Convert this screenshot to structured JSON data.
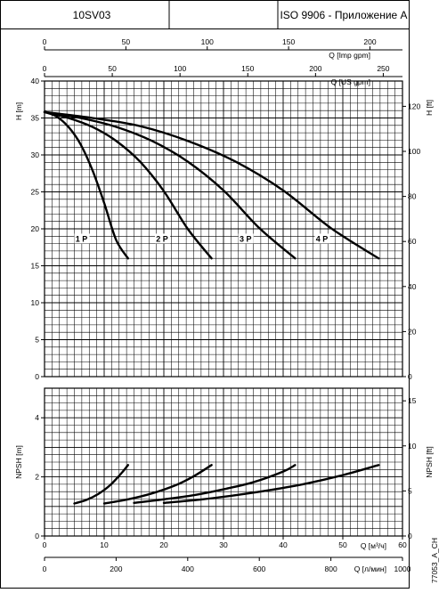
{
  "header": {
    "model": "10SV03",
    "middle": "",
    "standard": "ISO 9906 - Приложение A"
  },
  "side_code": "77053_A_CH",
  "chart_data": [
    {
      "type": "line",
      "name": "pump-head-curves",
      "xlabel": "Q [м³/ч]",
      "ylabel": "H [m]",
      "y2label": "H [ft]",
      "xlim": [
        0,
        60
      ],
      "ylim": [
        0,
        40
      ],
      "y2lim": [
        0,
        131.23
      ],
      "grid": true,
      "top_axes": [
        {
          "label": "Q [Imp gpm]",
          "lim": [
            0,
            220
          ],
          "ticks": [
            0,
            50,
            100,
            150,
            200
          ]
        },
        {
          "label": "Q [US gpm]",
          "lim": [
            0,
            264.17
          ],
          "ticks": [
            0,
            50,
            100,
            150,
            200,
            250
          ]
        }
      ],
      "y_ticks": [
        0,
        5,
        10,
        15,
        20,
        25,
        30,
        35,
        40
      ],
      "y2_ticks": [
        0,
        20,
        40,
        60,
        80,
        100,
        120
      ],
      "series": [
        {
          "name": "1 P",
          "label_at": [
            6.2,
            18.5
          ],
          "points": [
            [
              0,
              35.8
            ],
            [
              2,
              35.2
            ],
            [
              4,
              33.8
            ],
            [
              6,
              31.5
            ],
            [
              8,
              28.0
            ],
            [
              10,
              23.5
            ],
            [
              12,
              18.5
            ],
            [
              14,
              16.0
            ]
          ]
        },
        {
          "name": "2 P",
          "label_at": [
            19.7,
            18.5
          ],
          "points": [
            [
              0,
              35.8
            ],
            [
              4,
              35.0
            ],
            [
              8,
              33.8
            ],
            [
              12,
              31.9
            ],
            [
              16,
              29.1
            ],
            [
              20,
              25.1
            ],
            [
              24,
              20.0
            ],
            [
              28,
              16.0
            ]
          ]
        },
        {
          "name": "3 P",
          "label_at": [
            33.7,
            18.5
          ],
          "points": [
            [
              0,
              35.8
            ],
            [
              6,
              35.0
            ],
            [
              12,
              33.8
            ],
            [
              18,
              31.9
            ],
            [
              24,
              29.1
            ],
            [
              30,
              25.2
            ],
            [
              36,
              20.1
            ],
            [
              42,
              16.0
            ]
          ]
        },
        {
          "name": "4 P",
          "label_at": [
            46.5,
            18.5
          ],
          "points": [
            [
              0,
              35.8
            ],
            [
              8,
              35.0
            ],
            [
              16,
              33.9
            ],
            [
              24,
              31.9
            ],
            [
              32,
              29.1
            ],
            [
              40,
              25.2
            ],
            [
              48,
              20.1
            ],
            [
              56,
              16.0
            ]
          ]
        }
      ]
    },
    {
      "type": "line",
      "name": "npsh-curves",
      "xlabel": "Q [м³/ч]",
      "ylabel": "NPSH [m]",
      "y2label": "NPSH [ft]",
      "xlim": [
        0,
        60
      ],
      "ylim": [
        0,
        5
      ],
      "y2lim": [
        0,
        16.4
      ],
      "grid": true,
      "bottom_axis": {
        "label": "Q [л/мин]",
        "lim": [
          0,
          1000
        ],
        "ticks": [
          0,
          200,
          400,
          600,
          800,
          1000
        ]
      },
      "x_ticks": [
        0,
        10,
        20,
        30,
        40,
        50,
        60
      ],
      "y_ticks": [
        0,
        2,
        4
      ],
      "y2_ticks": [
        0,
        5,
        10,
        15
      ],
      "series": [
        {
          "name": "1 P",
          "points": [
            [
              5,
              1.1
            ],
            [
              7,
              1.22
            ],
            [
              9,
              1.42
            ],
            [
              11,
              1.72
            ],
            [
              13,
              2.15
            ],
            [
              14,
              2.4
            ]
          ]
        },
        {
          "name": "2 P",
          "points": [
            [
              10,
              1.1
            ],
            [
              14,
              1.24
            ],
            [
              18,
              1.44
            ],
            [
              22,
              1.72
            ],
            [
              25,
              2.02
            ],
            [
              28,
              2.4
            ]
          ]
        },
        {
          "name": "3 P",
          "points": [
            [
              15,
              1.12
            ],
            [
              20,
              1.24
            ],
            [
              25,
              1.38
            ],
            [
              30,
              1.58
            ],
            [
              35,
              1.82
            ],
            [
              40,
              2.18
            ],
            [
              42,
              2.4
            ]
          ]
        },
        {
          "name": "4 P",
          "points": [
            [
              20,
              1.12
            ],
            [
              26,
              1.23
            ],
            [
              32,
              1.38
            ],
            [
              38,
              1.56
            ],
            [
              44,
              1.78
            ],
            [
              50,
              2.06
            ],
            [
              56,
              2.4
            ]
          ]
        }
      ]
    }
  ]
}
